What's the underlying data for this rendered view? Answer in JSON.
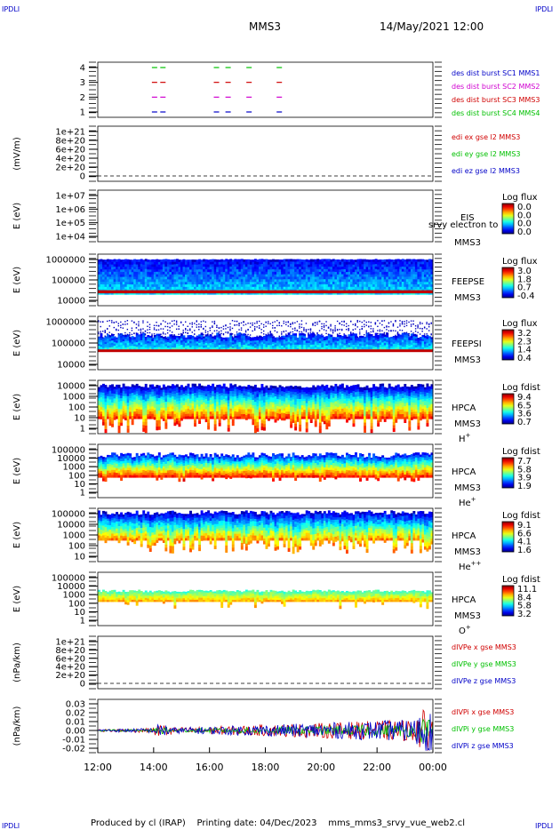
{
  "header": {
    "corner_logo": "IPDLI",
    "mission": "MMS3",
    "date_time": "14/May/2021 12:00"
  },
  "footer": {
    "credit": "Produced by cl (IRAP)    Printing date: 04/Dec/2023    mms_mms3_srvy_vue_web2.cl"
  },
  "colors": {
    "blue": "#0000c8",
    "magenta": "#d000d0",
    "red": "#d00000",
    "green": "#00c000"
  },
  "chart_data": [
    {
      "type": "line",
      "title": "",
      "ylabel": "",
      "yticks": [
        "4",
        "3",
        "2",
        "1"
      ],
      "series": [
        {
          "name": "des dist burst SC1 MMS1",
          "color": "blue",
          "y": 1,
          "x": [
            "14:02",
            "14:20",
            "16:15",
            "16:40",
            "17:25",
            "18:30"
          ]
        },
        {
          "name": "des dist burst SC2 MMS2",
          "color": "magenta",
          "y": 2,
          "x": [
            "14:02",
            "14:20",
            "16:15",
            "16:40",
            "17:25",
            "18:30"
          ]
        },
        {
          "name": "des dist burst SC3 MMS3",
          "color": "red",
          "y": 3,
          "x": [
            "14:02",
            "14:20",
            "16:15",
            "16:40",
            "17:25",
            "18:30"
          ]
        },
        {
          "name": "des dist burst SC4 MMS4",
          "color": "green",
          "y": 4,
          "x": [
            "14:02",
            "14:20",
            "16:15",
            "16:40",
            "17:25",
            "18:30"
          ]
        }
      ]
    },
    {
      "type": "line",
      "ylabel": "(mV/m)",
      "yticks": [
        "1e+21",
        "8e+20",
        "6e+20",
        "4e+20",
        "2e+20",
        "0"
      ],
      "series": [
        {
          "name": "edi ex gse l2 MMS3",
          "color": "red"
        },
        {
          "name": "edi ey gse l2 MMS3",
          "color": "green"
        },
        {
          "name": "edi ez gse l2 MMS3",
          "color": "blue"
        }
      ]
    },
    {
      "type": "heatmap",
      "ylabel": "E (eV)",
      "yticks": [
        "1e+07",
        "1e+06",
        "1e+05",
        "1e+04"
      ],
      "instrument": "EIS",
      "species": "MMS3",
      "extra_label": "srvy electron to",
      "colorbar_title": "Log flux",
      "colorbar_ticks": [
        "0.0",
        "0.0",
        "0.0",
        "0.0"
      ]
    },
    {
      "type": "heatmap",
      "ylabel": "E (eV)",
      "yticks": [
        "1000000",
        "100000",
        "10000"
      ],
      "instrument": "FEEPSE",
      "species": "MMS3",
      "colorbar_title": "Log flux",
      "colorbar_ticks": [
        "3.0",
        "1.8",
        "0.7",
        "-0.4"
      ]
    },
    {
      "type": "heatmap",
      "ylabel": "E (eV)",
      "yticks": [
        "1000000",
        "100000",
        "10000"
      ],
      "instrument": "FEEPSI",
      "species": "MMS3",
      "colorbar_title": "Log flux",
      "colorbar_ticks": [
        "3.2",
        "2.3",
        "1.4",
        "0.4"
      ]
    },
    {
      "type": "heatmap",
      "ylabel": "E (eV)",
      "yticks": [
        "10000",
        "1000",
        "100",
        "10",
        "1"
      ],
      "instrument": "HPCA",
      "species": "MMS3",
      "ion": "H",
      "ion_charge": "+",
      "colorbar_title": "Log fdist",
      "colorbar_ticks": [
        "9.4",
        "6.5",
        "3.6",
        "0.7"
      ]
    },
    {
      "type": "heatmap",
      "ylabel": "E (eV)",
      "yticks": [
        "100000",
        "10000",
        "1000",
        "100",
        "10",
        "1"
      ],
      "instrument": "HPCA",
      "species": "MMS3",
      "ion": "He",
      "ion_charge": "+",
      "colorbar_title": "Log fdist",
      "colorbar_ticks": [
        "7.7",
        "5.8",
        "3.9",
        "1.9"
      ]
    },
    {
      "type": "heatmap",
      "ylabel": "E (eV)",
      "yticks": [
        "100000",
        "10000",
        "1000",
        "100",
        "10"
      ],
      "instrument": "HPCA",
      "species": "MMS3",
      "ion": "He",
      "ion_charge": "++",
      "colorbar_title": "Log fdist",
      "colorbar_ticks": [
        "9.1",
        "6.6",
        "4.1",
        "1.6"
      ]
    },
    {
      "type": "heatmap",
      "ylabel": "E (eV)",
      "yticks": [
        "100000",
        "10000",
        "1000",
        "100",
        "10",
        "1"
      ],
      "instrument": "HPCA",
      "species": "MMS3",
      "ion": "O",
      "ion_charge": "+",
      "colorbar_title": "Log fdist",
      "colorbar_ticks": [
        "11.1",
        "8.4",
        "5.8",
        "3.2"
      ]
    },
    {
      "type": "line",
      "ylabel": "(nPa/km)",
      "yticks": [
        "1e+21",
        "8e+20",
        "6e+20",
        "4e+20",
        "2e+20",
        "0"
      ],
      "series": [
        {
          "name": "dIVPe x gse MMS3",
          "color": "red"
        },
        {
          "name": "dIVPe y gse MMS3",
          "color": "green"
        },
        {
          "name": "dIVPe z gse MMS3",
          "color": "blue"
        }
      ]
    },
    {
      "type": "line",
      "ylabel": "(nPa/km)",
      "yticks": [
        "0.03",
        "0.02",
        "0.01",
        "0.00",
        "-0.01",
        "-0.02"
      ],
      "ylim": [
        -0.025,
        0.035
      ],
      "series": [
        {
          "name": "dIVPi x gse MMS3",
          "color": "red"
        },
        {
          "name": "dIVPi y gse MMS3",
          "color": "green"
        },
        {
          "name": "dIVPi z gse MMS3",
          "color": "blue"
        }
      ]
    }
  ],
  "x_axis": {
    "ticks": [
      "12:00",
      "14:00",
      "16:00",
      "18:00",
      "20:00",
      "22:00",
      "00:00"
    ]
  }
}
